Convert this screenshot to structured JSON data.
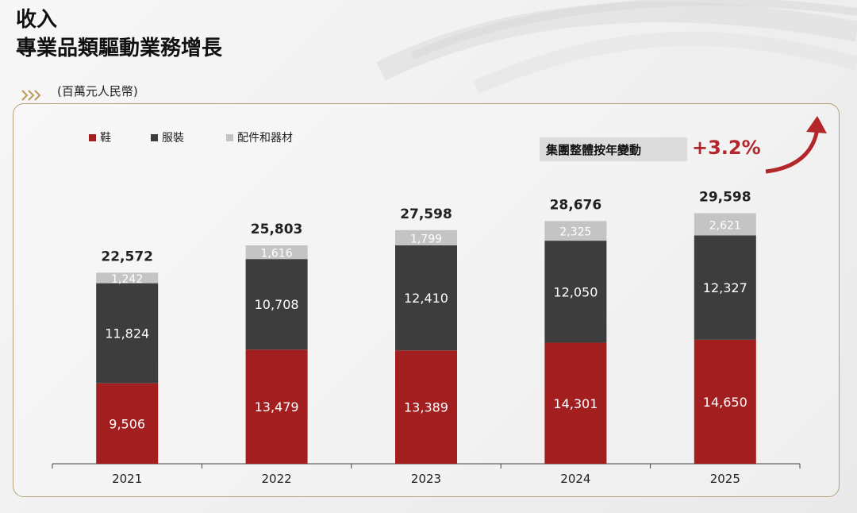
{
  "header": {
    "title": "收入",
    "subtitle": "專業品類驅動業務增長",
    "unit": "(百萬元人民幣)"
  },
  "badge": {
    "label": "集團整體按年變動",
    "value": "+3.2%"
  },
  "colors": {
    "footwear": "#a31f1f",
    "apparel": "#3d3d3d",
    "accessories": "#c4c4c4",
    "accent": "#b3262b"
  },
  "chart_data": {
    "type": "bar",
    "stacked": true,
    "categories": [
      "2021",
      "2022",
      "2023",
      "2024",
      "2025"
    ],
    "series": [
      {
        "name": "鞋",
        "values": [
          9506,
          13479,
          13389,
          14301,
          14650
        ]
      },
      {
        "name": "服裝",
        "values": [
          11824,
          10708,
          12410,
          12050,
          12327
        ]
      },
      {
        "name": "配件和器材",
        "values": [
          1242,
          1616,
          1799,
          2325,
          2621
        ]
      }
    ],
    "series_labels": [
      [
        "9,506",
        "13,479",
        "13,389",
        "14,301",
        "14,650"
      ],
      [
        "11,824",
        "10,708",
        "12,410",
        "12,050",
        "12,327"
      ],
      [
        "1,242",
        "1,616",
        "1,799",
        "2,325",
        "2,621"
      ]
    ],
    "totals": [
      22572,
      25803,
      27598,
      28676,
      29598
    ],
    "total_labels": [
      "22,572",
      "25,803",
      "27,598",
      "28,676",
      "29,598"
    ],
    "legend_position": "top-left",
    "grid": false
  }
}
